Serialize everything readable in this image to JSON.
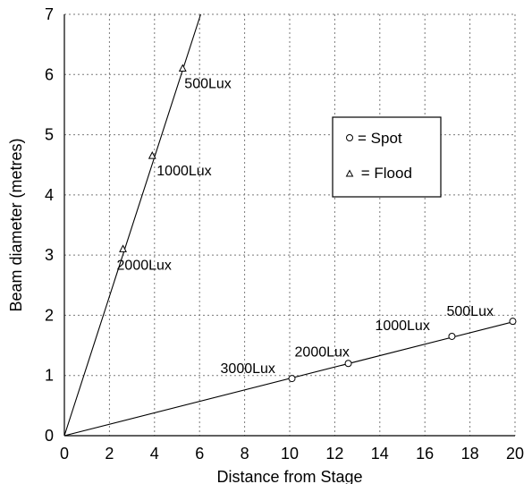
{
  "chart_data": {
    "type": "line",
    "xlabel": "Distance from Stage",
    "ylabel": "Beam diameter (metres)",
    "xlim": [
      0,
      20
    ],
    "ylim": [
      0,
      7
    ],
    "xticks": [
      0,
      2,
      4,
      6,
      8,
      10,
      12,
      14,
      16,
      18,
      20
    ],
    "yticks": [
      0,
      1,
      2,
      3,
      4,
      5,
      6,
      7
    ],
    "grid": true,
    "legend_position": "upper-right",
    "legend": [
      {
        "marker": "circle",
        "label": "= Spot"
      },
      {
        "marker": "triangle",
        "label": " = Flood"
      }
    ],
    "series": [
      {
        "marker": "circle",
        "line": {
          "x": [
            0,
            20
          ],
          "y": [
            0,
            1.9
          ]
        },
        "points": [
          {
            "x": 10.1,
            "y": 0.95,
            "label": "3000Lux"
          },
          {
            "x": 12.6,
            "y": 1.2,
            "label": "2000Lux"
          },
          {
            "x": 17.2,
            "y": 1.65,
            "label": "1000Lux"
          },
          {
            "x": 19.9,
            "y": 1.9,
            "label": "500Lux"
          }
        ]
      },
      {
        "marker": "triangle",
        "line": {
          "x": [
            0,
            6.05
          ],
          "y": [
            0,
            7
          ]
        },
        "points": [
          {
            "x": 2.6,
            "y": 3.1,
            "label": "2000Lux"
          },
          {
            "x": 3.9,
            "y": 4.65,
            "label": "1000Lux"
          },
          {
            "x": 5.25,
            "y": 6.1,
            "label": "500Lux"
          }
        ]
      }
    ]
  }
}
